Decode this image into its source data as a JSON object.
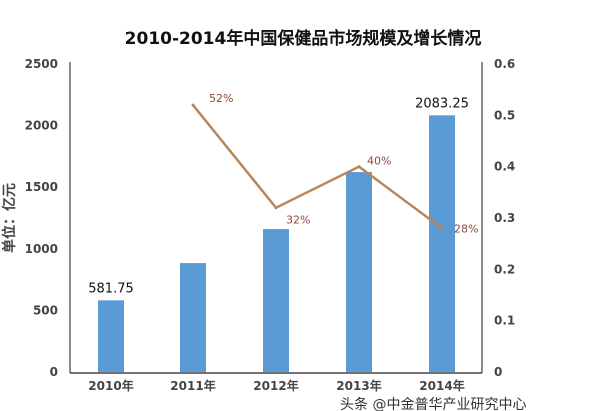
{
  "chart_data": {
    "type": "bar+line",
    "title": "2010-2014年中国保健品市场规模及增长情况",
    "ylabel": "单位：亿元",
    "categories": [
      "2010年",
      "2011年",
      "2012年",
      "2013年",
      "2014年"
    ],
    "bar_series": {
      "values": [
        581.75,
        884,
        1160,
        1623,
        2083.25
      ],
      "color": "#5b9bd5"
    },
    "bar_data_labels": [
      "581.75",
      "",
      "",
      "",
      "2083.25"
    ],
    "line_series": {
      "values": [
        null,
        0.52,
        0.32,
        0.4,
        0.28
      ],
      "color": "#b8865a"
    },
    "line_data_labels": [
      "",
      "52%",
      "32%",
      "40%",
      "28%"
    ],
    "ylim_left": [
      0,
      2500
    ],
    "yticks_left": [
      "0",
      "500",
      "1000",
      "1500",
      "2000",
      "2500"
    ],
    "ylim_right": [
      0,
      0.6
    ],
    "yticks_right": [
      "0",
      "0.1",
      "0.2",
      "0.3",
      "0.4",
      "0.5",
      "0.6"
    ],
    "grid": false,
    "legend": "none"
  },
  "watermark": "头条 @中金普华产业研究中心"
}
